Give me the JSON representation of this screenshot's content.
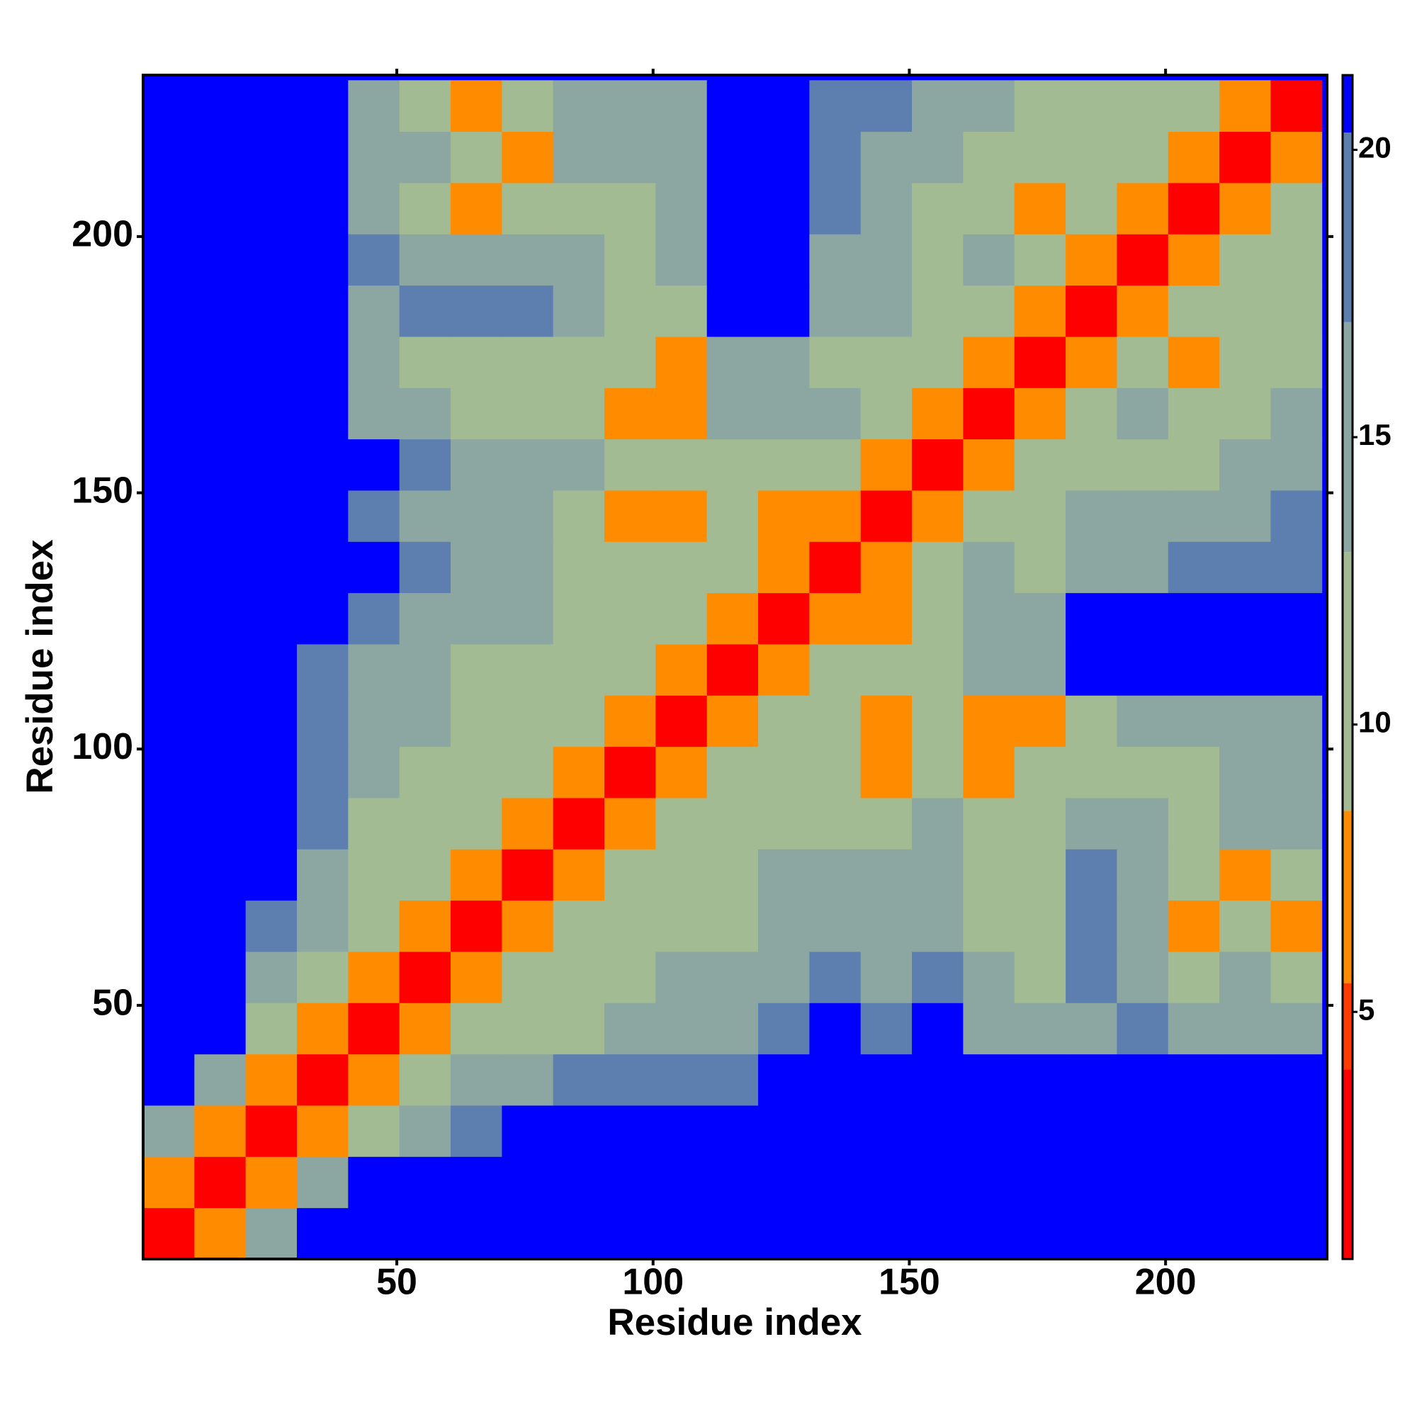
{
  "chart_data": {
    "type": "heatmap",
    "x_label": "Residue index",
    "y_label": "Residue index",
    "xlim": [
      0.5,
      231.5
    ],
    "ylim": [
      0.5,
      231.5
    ],
    "xticks": [
      50,
      100,
      150,
      200
    ],
    "yticks": [
      50,
      100,
      150,
      200
    ],
    "x": [
      5.5,
      15.5,
      25.5,
      35.5,
      45.5,
      55.5,
      65.5,
      75.5,
      85.5,
      95.5,
      105.5,
      115.5,
      125.5,
      135.5,
      145.5,
      155.5,
      165.5,
      175.5,
      185.5,
      195.5,
      205.5,
      215.5,
      225.5
    ],
    "y": [
      5.5,
      15.5,
      25.5,
      35.5,
      45.5,
      55.5,
      65.5,
      75.5,
      85.5,
      95.5,
      105.5,
      115.5,
      125.5,
      135.5,
      145.5,
      155.5,
      165.5,
      175.5,
      185.5,
      195.5,
      205.5,
      215.5,
      225.5
    ],
    "z": [
      [
        3,
        8,
        16,
        21,
        21,
        21,
        21,
        21,
        21,
        21,
        21,
        21,
        21,
        21,
        21,
        21,
        21,
        21,
        21,
        21,
        21,
        21,
        21
      ],
      [
        8,
        3,
        8,
        14,
        21,
        21,
        21,
        21,
        21,
        21,
        21,
        21,
        21,
        21,
        21,
        21,
        21,
        21,
        21,
        21,
        21,
        21,
        21
      ],
      [
        16,
        8,
        3,
        8,
        13,
        16,
        19,
        21,
        21,
        21,
        21,
        21,
        21,
        21,
        21,
        21,
        21,
        21,
        21,
        21,
        21,
        21,
        21
      ],
      [
        21,
        14,
        8,
        3,
        8,
        12,
        14,
        17,
        19,
        19,
        20,
        20,
        21,
        21,
        21,
        21,
        21,
        21,
        21,
        21,
        21,
        21,
        21
      ],
      [
        21,
        21,
        13,
        8,
        3,
        7,
        11,
        13,
        12,
        14,
        17,
        17,
        19,
        21,
        20,
        21,
        16,
        14,
        17,
        19,
        14,
        16,
        15
      ],
      [
        21,
        21,
        16,
        12,
        7,
        3,
        7,
        12,
        11,
        13,
        14,
        15,
        16,
        18,
        17,
        18,
        15,
        13,
        19,
        16,
        13,
        14,
        10
      ],
      [
        21,
        21,
        19,
        14,
        11,
        7,
        3,
        7,
        12,
        11,
        13,
        13,
        14,
        15,
        15,
        17,
        13,
        12,
        18,
        15,
        7,
        10,
        7
      ],
      [
        21,
        21,
        21,
        17,
        13,
        12,
        7,
        3,
        7,
        12,
        13,
        13,
        14,
        14,
        15,
        17,
        12,
        11,
        18,
        14,
        9,
        8,
        12
      ],
      [
        21,
        21,
        21,
        19,
        12,
        11,
        12,
        7,
        3,
        7,
        11,
        12,
        12,
        13,
        13,
        15,
        12,
        12,
        17,
        16,
        13,
        15,
        17
      ],
      [
        21,
        21,
        21,
        19,
        14,
        13,
        11,
        12,
        7,
        3,
        7,
        11,
        11,
        12,
        8,
        13,
        8,
        11,
        13,
        11,
        13,
        15,
        16
      ],
      [
        21,
        21,
        21,
        20,
        17,
        14,
        13,
        13,
        11,
        7,
        3,
        7,
        10,
        13,
        7,
        13,
        7,
        8,
        13,
        14,
        15,
        16,
        17
      ],
      [
        21,
        21,
        21,
        20,
        17,
        15,
        13,
        13,
        12,
        11,
        7,
        3,
        7,
        11,
        10,
        12,
        14,
        15,
        21,
        21,
        21,
        21,
        21
      ],
      [
        21,
        21,
        21,
        21,
        19,
        16,
        14,
        14,
        12,
        11,
        10,
        7,
        3,
        7,
        7,
        12,
        15,
        15,
        21,
        21,
        21,
        21,
        21
      ],
      [
        21,
        21,
        21,
        21,
        21,
        18,
        15,
        14,
        13,
        12,
        13,
        11,
        7,
        3,
        7,
        11,
        14,
        13,
        17,
        17,
        18,
        19,
        19
      ],
      [
        21,
        21,
        21,
        21,
        20,
        17,
        15,
        15,
        13,
        8,
        7,
        10,
        7,
        7,
        3,
        7,
        11,
        12,
        15,
        15,
        16,
        17,
        18
      ],
      [
        21,
        21,
        21,
        21,
        21,
        18,
        17,
        17,
        15,
        13,
        13,
        12,
        12,
        11,
        7,
        3,
        7,
        10,
        13,
        13,
        13,
        15,
        16
      ],
      [
        21,
        21,
        21,
        21,
        16,
        15,
        13,
        12,
        12,
        8,
        7,
        14,
        15,
        14,
        11,
        7,
        3,
        7,
        11,
        14,
        12,
        13,
        14
      ],
      [
        21,
        21,
        21,
        21,
        14,
        13,
        12,
        11,
        12,
        11,
        8,
        15,
        15,
        13,
        12,
        10,
        7,
        3,
        7,
        12,
        7,
        12,
        13
      ],
      [
        21,
        21,
        21,
        21,
        17,
        19,
        18,
        18,
        17,
        13,
        13,
        21,
        21,
        17,
        15,
        13,
        11,
        7,
        3,
        7,
        12,
        11,
        12
      ],
      [
        21,
        21,
        21,
        21,
        19,
        16,
        15,
        14,
        16,
        11,
        14,
        21,
        21,
        17,
        15,
        13,
        14,
        12,
        7,
        3,
        7,
        11,
        12
      ],
      [
        21,
        21,
        21,
        21,
        14,
        13,
        7,
        9,
        13,
        13,
        15,
        21,
        21,
        18,
        16,
        13,
        12,
        7,
        12,
        7,
        3,
        7,
        11
      ],
      [
        21,
        21,
        21,
        21,
        16,
        14,
        10,
        8,
        15,
        15,
        16,
        21,
        21,
        19,
        17,
        15,
        13,
        12,
        11,
        11,
        7,
        3,
        7
      ],
      [
        21,
        21,
        21,
        21,
        15,
        10,
        7,
        12,
        17,
        16,
        17,
        21,
        21,
        19,
        18,
        16,
        14,
        13,
        12,
        12,
        11,
        7,
        3
      ]
    ],
    "background_color": "#0000ff",
    "clim": [
      0.7,
      21.3
    ],
    "cticks": [
      5,
      10,
      15,
      20
    ],
    "color_bands": [
      {
        "from": 0.7,
        "to": 4,
        "color": "#ff0000"
      },
      {
        "from": 4,
        "to": 5.5,
        "color": "#ff3c00"
      },
      {
        "from": 5.5,
        "to": 8.5,
        "color": "#ff8c00"
      },
      {
        "from": 8.5,
        "to": 13,
        "color": "#a3bb92"
      },
      {
        "from": 13,
        "to": 17,
        "color": "#8ca6a2"
      },
      {
        "from": 17,
        "to": 20.3,
        "color": "#5d7fb0"
      },
      {
        "from": 20.3,
        "to": 21.3,
        "color": "#0000ff"
      }
    ]
  }
}
